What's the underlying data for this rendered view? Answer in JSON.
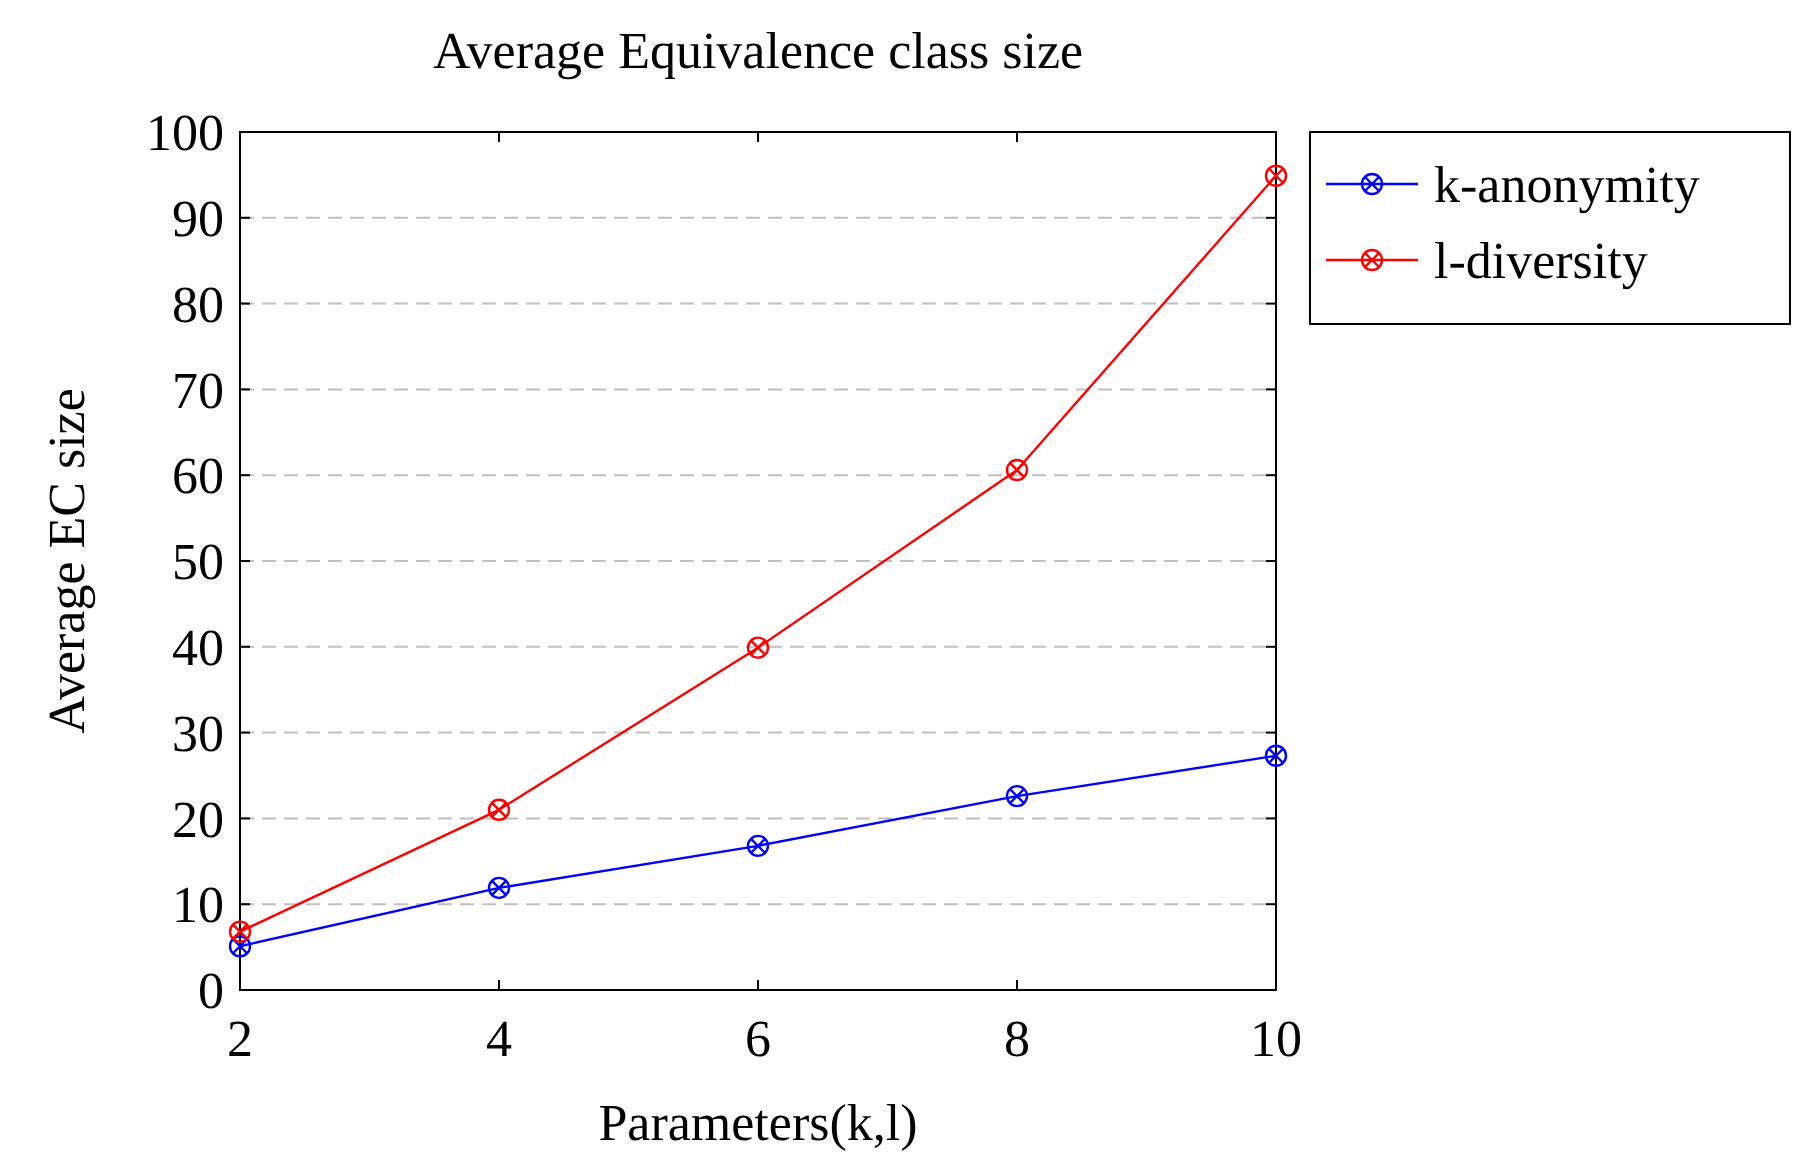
{
  "chart_data": {
    "type": "line",
    "title": "Average Equivalence class size",
    "xlabel": "Parameters(k,l)",
    "ylabel": "Average EC size",
    "x": [
      2,
      4,
      6,
      8,
      10
    ],
    "series": [
      {
        "name": "k-anonymity",
        "color": "#0000ff",
        "values": [
          5.1,
          11.9,
          16.8,
          22.6,
          27.3
        ]
      },
      {
        "name": "l-diversity",
        "color": "#ff0000",
        "values": [
          6.8,
          21,
          39.9,
          60.6,
          94.9
        ]
      }
    ],
    "xlim": [
      2,
      10
    ],
    "xticks": [
      2,
      4,
      6,
      8,
      10
    ],
    "ylim": [
      0,
      100
    ],
    "yticks": [
      0,
      10,
      20,
      30,
      40,
      50,
      60,
      70,
      80,
      90,
      100
    ],
    "grid": "y",
    "legend": "top right",
    "marker": "circle",
    "line_style": "solid"
  }
}
